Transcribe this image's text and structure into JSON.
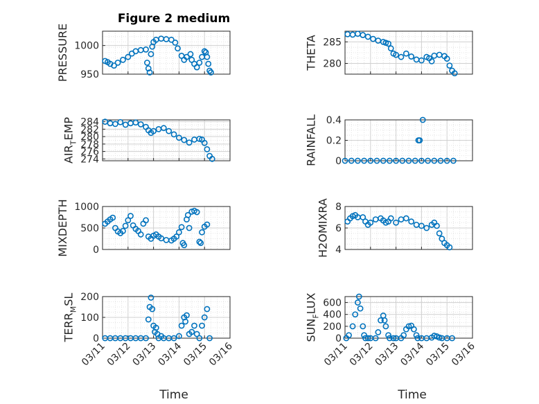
{
  "figure": {
    "title": "Figure 2 medium",
    "xlabel": "Time",
    "x_ticks": [
      "03/11",
      "03/12",
      "03/13",
      "03/14",
      "03/15",
      "03/16"
    ],
    "x_range_days": [
      11,
      16
    ]
  },
  "colors": {
    "marker": "#0072BD",
    "axes": "#262626",
    "grid": "#d9d9d9"
  },
  "chart_data": [
    {
      "type": "scatter",
      "id": "pressure",
      "ylabel": "PRESSURE",
      "ylim": [
        950,
        1025
      ],
      "yticks": [
        950,
        1000
      ],
      "ytick_labels": [
        "950",
        "1000"
      ],
      "grid": true,
      "title": "Figure 2 medium",
      "x_unit": "day of March",
      "points": [
        [
          11.1,
          973
        ],
        [
          11.2,
          971
        ],
        [
          11.3,
          968
        ],
        [
          11.45,
          965
        ],
        [
          11.6,
          970
        ],
        [
          11.8,
          975
        ],
        [
          12.0,
          980
        ],
        [
          12.15,
          986
        ],
        [
          12.3,
          990
        ],
        [
          12.5,
          992
        ],
        [
          12.7,
          993
        ],
        [
          12.75,
          970
        ],
        [
          12.8,
          960
        ],
        [
          12.85,
          953
        ],
        [
          12.9,
          985
        ],
        [
          12.95,
          998
        ],
        [
          13.0,
          1006
        ],
        [
          13.1,
          1010
        ],
        [
          13.3,
          1012
        ],
        [
          13.5,
          1011
        ],
        [
          13.7,
          1010
        ],
        [
          13.85,
          1005
        ],
        [
          13.95,
          995
        ],
        [
          14.1,
          982
        ],
        [
          14.2,
          975
        ],
        [
          14.3,
          980
        ],
        [
          14.45,
          985
        ],
        [
          14.5,
          975
        ],
        [
          14.6,
          968
        ],
        [
          14.7,
          962
        ],
        [
          14.8,
          970
        ],
        [
          14.9,
          980
        ],
        [
          15.0,
          990
        ],
        [
          15.05,
          988
        ],
        [
          15.1,
          980
        ],
        [
          15.15,
          968
        ],
        [
          15.2,
          956
        ],
        [
          15.25,
          953
        ]
      ]
    },
    {
      "type": "scatter",
      "id": "theta",
      "ylabel": "THETA",
      "ylim": [
        277.5,
        287.5
      ],
      "yticks": [
        280,
        285
      ],
      "ytick_labels": [
        "280",
        "285"
      ],
      "grid": true,
      "x_unit": "day of March",
      "points": [
        [
          11.1,
          286.8
        ],
        [
          11.3,
          286.7
        ],
        [
          11.5,
          286.9
        ],
        [
          11.7,
          286.6
        ],
        [
          11.9,
          286.2
        ],
        [
          12.1,
          285.7
        ],
        [
          12.3,
          285.3
        ],
        [
          12.5,
          285.0
        ],
        [
          12.6,
          284.8
        ],
        [
          12.7,
          284.6
        ],
        [
          12.8,
          283.5
        ],
        [
          12.9,
          282.3
        ],
        [
          13.0,
          282.0
        ],
        [
          13.2,
          281.5
        ],
        [
          13.4,
          282.3
        ],
        [
          13.6,
          281.6
        ],
        [
          13.8,
          280.9
        ],
        [
          14.0,
          280.7
        ],
        [
          14.2,
          281.5
        ],
        [
          14.3,
          281.2
        ],
        [
          14.4,
          280.5
        ],
        [
          14.5,
          281.8
        ],
        [
          14.7,
          282.0
        ],
        [
          14.9,
          281.7
        ],
        [
          15.0,
          281.1
        ],
        [
          15.1,
          279.5
        ],
        [
          15.2,
          278.3
        ],
        [
          15.3,
          277.7
        ]
      ]
    },
    {
      "type": "scatter",
      "id": "air_temp",
      "ylabel": "AIR",
      "ylabel_subscript": "T",
      "ylabel_suffix": "EMP",
      "ylim": [
        273.5,
        284.5
      ],
      "yticks": [
        274,
        276,
        278,
        280,
        282,
        284
      ],
      "ytick_labels": [
        "274",
        "276",
        "278",
        "280",
        "282",
        "284"
      ],
      "grid": true,
      "x_unit": "day of March",
      "points": [
        [
          11.1,
          284.0
        ],
        [
          11.3,
          283.6
        ],
        [
          11.5,
          283.4
        ],
        [
          11.7,
          283.9
        ],
        [
          11.9,
          283.2
        ],
        [
          12.1,
          283.6
        ],
        [
          12.3,
          283.8
        ],
        [
          12.5,
          283.3
        ],
        [
          12.7,
          282.6
        ],
        [
          12.8,
          281.7
        ],
        [
          12.9,
          281.0
        ],
        [
          13.0,
          281.5
        ],
        [
          13.2,
          282.0
        ],
        [
          13.4,
          282.3
        ],
        [
          13.6,
          281.5
        ],
        [
          13.8,
          280.6
        ],
        [
          14.0,
          279.7
        ],
        [
          14.2,
          279.1
        ],
        [
          14.4,
          278.4
        ],
        [
          14.6,
          279.2
        ],
        [
          14.8,
          279.4
        ],
        [
          14.9,
          279.2
        ],
        [
          15.0,
          278.3
        ],
        [
          15.1,
          276.6
        ],
        [
          15.2,
          274.8
        ],
        [
          15.3,
          274.0
        ]
      ]
    },
    {
      "type": "scatter",
      "id": "rainfall",
      "ylabel": "RAINFALL",
      "ylim": [
        0,
        0.4
      ],
      "yticks": [
        0,
        0.2,
        0.4
      ],
      "ytick_labels": [
        "0",
        "0.2",
        "0.4"
      ],
      "grid": true,
      "x_unit": "day of March",
      "points": [
        [
          11.0,
          0
        ],
        [
          11.25,
          0
        ],
        [
          11.5,
          0
        ],
        [
          11.75,
          0
        ],
        [
          12.0,
          0
        ],
        [
          12.25,
          0
        ],
        [
          12.5,
          0
        ],
        [
          12.75,
          0
        ],
        [
          13.0,
          0
        ],
        [
          13.25,
          0
        ],
        [
          13.5,
          0
        ],
        [
          13.75,
          0
        ],
        [
          13.88,
          0.2
        ],
        [
          13.93,
          0.2
        ],
        [
          14.0,
          0
        ],
        [
          14.05,
          0.4
        ],
        [
          14.25,
          0
        ],
        [
          14.5,
          0
        ],
        [
          14.75,
          0
        ],
        [
          15.0,
          0
        ],
        [
          15.25,
          0
        ]
      ]
    },
    {
      "type": "scatter",
      "id": "mixdepth",
      "ylabel": "MIXDEPTH",
      "ylim": [
        0,
        1000
      ],
      "yticks": [
        0,
        500,
        1000
      ],
      "ytick_labels": [
        "0",
        "500",
        "1000"
      ],
      "grid": true,
      "x_unit": "day of March",
      "points": [
        [
          11.1,
          600
        ],
        [
          11.2,
          650
        ],
        [
          11.3,
          700
        ],
        [
          11.4,
          740
        ],
        [
          11.5,
          500
        ],
        [
          11.6,
          420
        ],
        [
          11.7,
          380
        ],
        [
          11.8,
          430
        ],
        [
          11.9,
          550
        ],
        [
          12.0,
          680
        ],
        [
          12.1,
          780
        ],
        [
          12.2,
          560
        ],
        [
          12.3,
          480
        ],
        [
          12.4,
          430
        ],
        [
          12.5,
          350
        ],
        [
          12.6,
          600
        ],
        [
          12.7,
          680
        ],
        [
          12.8,
          300
        ],
        [
          12.9,
          250
        ],
        [
          13.0,
          320
        ],
        [
          13.1,
          350
        ],
        [
          13.2,
          300
        ],
        [
          13.3,
          260
        ],
        [
          13.5,
          220
        ],
        [
          13.7,
          210
        ],
        [
          13.8,
          250
        ],
        [
          13.9,
          300
        ],
        [
          14.0,
          400
        ],
        [
          14.1,
          520
        ],
        [
          14.15,
          150
        ],
        [
          14.2,
          100
        ],
        [
          14.3,
          700
        ],
        [
          14.35,
          800
        ],
        [
          14.4,
          500
        ],
        [
          14.5,
          880
        ],
        [
          14.6,
          900
        ],
        [
          14.7,
          870
        ],
        [
          14.8,
          180
        ],
        [
          14.85,
          150
        ],
        [
          14.9,
          400
        ],
        [
          15.0,
          530
        ],
        [
          15.1,
          580
        ]
      ]
    },
    {
      "type": "scatter",
      "id": "h2omixra",
      "ylabel": "H2OMIXRA",
      "ylim": [
        4,
        8
      ],
      "yticks": [
        4,
        6,
        8
      ],
      "ytick_labels": [
        "4",
        "6",
        "8"
      ],
      "grid": true,
      "x_unit": "day of March",
      "points": [
        [
          11.1,
          6.6
        ],
        [
          11.2,
          6.9
        ],
        [
          11.3,
          7.1
        ],
        [
          11.4,
          7.2
        ],
        [
          11.5,
          7.0
        ],
        [
          11.7,
          7.0
        ],
        [
          11.8,
          6.6
        ],
        [
          11.9,
          6.3
        ],
        [
          12.0,
          6.5
        ],
        [
          12.2,
          6.8
        ],
        [
          12.4,
          6.9
        ],
        [
          12.5,
          6.7
        ],
        [
          12.6,
          6.5
        ],
        [
          12.7,
          6.6
        ],
        [
          12.8,
          6.9
        ],
        [
          13.0,
          6.5
        ],
        [
          13.2,
          6.8
        ],
        [
          13.4,
          6.9
        ],
        [
          13.6,
          6.6
        ],
        [
          13.8,
          6.3
        ],
        [
          14.0,
          6.2
        ],
        [
          14.2,
          6.0
        ],
        [
          14.4,
          6.3
        ],
        [
          14.5,
          6.5
        ],
        [
          14.6,
          6.2
        ],
        [
          14.7,
          5.5
        ],
        [
          14.8,
          5.0
        ],
        [
          14.9,
          4.6
        ],
        [
          15.0,
          4.4
        ],
        [
          15.1,
          4.2
        ]
      ]
    },
    {
      "type": "scatter",
      "id": "terr_msl",
      "ylabel": "TERR",
      "ylabel_subscript": "M",
      "ylabel_suffix": "SL",
      "ylim": [
        0,
        200
      ],
      "yticks": [
        0,
        100,
        200
      ],
      "ytick_labels": [
        "0",
        "100",
        "200"
      ],
      "grid": true,
      "x_unit": "day of March",
      "points": [
        [
          11.1,
          0
        ],
        [
          11.3,
          0
        ],
        [
          11.5,
          0
        ],
        [
          11.7,
          0
        ],
        [
          11.9,
          0
        ],
        [
          12.1,
          0
        ],
        [
          12.3,
          0
        ],
        [
          12.5,
          0
        ],
        [
          12.7,
          0
        ],
        [
          12.8,
          90
        ],
        [
          12.85,
          150
        ],
        [
          12.9,
          195
        ],
        [
          12.95,
          140
        ],
        [
          13.0,
          60
        ],
        [
          13.05,
          30
        ],
        [
          13.1,
          50
        ],
        [
          13.15,
          20
        ],
        [
          13.2,
          0
        ],
        [
          13.3,
          10
        ],
        [
          13.4,
          0
        ],
        [
          13.6,
          0
        ],
        [
          13.8,
          0
        ],
        [
          14.0,
          10
        ],
        [
          14.1,
          60
        ],
        [
          14.2,
          100
        ],
        [
          14.25,
          80
        ],
        [
          14.3,
          110
        ],
        [
          14.4,
          20
        ],
        [
          14.5,
          30
        ],
        [
          14.6,
          60
        ],
        [
          14.7,
          20
        ],
        [
          14.8,
          0
        ],
        [
          14.9,
          60
        ],
        [
          15.0,
          100
        ],
        [
          15.1,
          140
        ],
        [
          15.2,
          0
        ]
      ]
    },
    {
      "type": "scatter",
      "id": "sun_flux",
      "ylabel": "SUN",
      "ylabel_subscript": "F",
      "ylabel_suffix": "LUX",
      "ylim": [
        0,
        700
      ],
      "yticks": [
        0,
        200,
        400,
        600
      ],
      "ytick_labels": [
        "0",
        "200",
        "400",
        "600"
      ],
      "grid": true,
      "x_unit": "day of March",
      "points": [
        [
          11.05,
          0
        ],
        [
          11.15,
          50
        ],
        [
          11.3,
          200
        ],
        [
          11.4,
          400
        ],
        [
          11.5,
          600
        ],
        [
          11.55,
          700
        ],
        [
          11.6,
          500
        ],
        [
          11.7,
          200
        ],
        [
          11.75,
          50
        ],
        [
          11.8,
          0
        ],
        [
          11.9,
          0
        ],
        [
          12.0,
          0
        ],
        [
          12.2,
          0
        ],
        [
          12.3,
          100
        ],
        [
          12.4,
          300
        ],
        [
          12.5,
          380
        ],
        [
          12.55,
          300
        ],
        [
          12.6,
          200
        ],
        [
          12.7,
          50
        ],
        [
          12.75,
          0
        ],
        [
          12.9,
          0
        ],
        [
          13.0,
          0
        ],
        [
          13.2,
          0
        ],
        [
          13.3,
          50
        ],
        [
          13.4,
          150
        ],
        [
          13.5,
          200
        ],
        [
          13.6,
          210
        ],
        [
          13.7,
          150
        ],
        [
          13.8,
          50
        ],
        [
          13.85,
          0
        ],
        [
          14.0,
          0
        ],
        [
          14.2,
          0
        ],
        [
          14.4,
          10
        ],
        [
          14.5,
          40
        ],
        [
          14.6,
          30
        ],
        [
          14.7,
          10
        ],
        [
          14.8,
          0
        ],
        [
          15.0,
          0
        ],
        [
          15.2,
          0
        ]
      ]
    }
  ]
}
